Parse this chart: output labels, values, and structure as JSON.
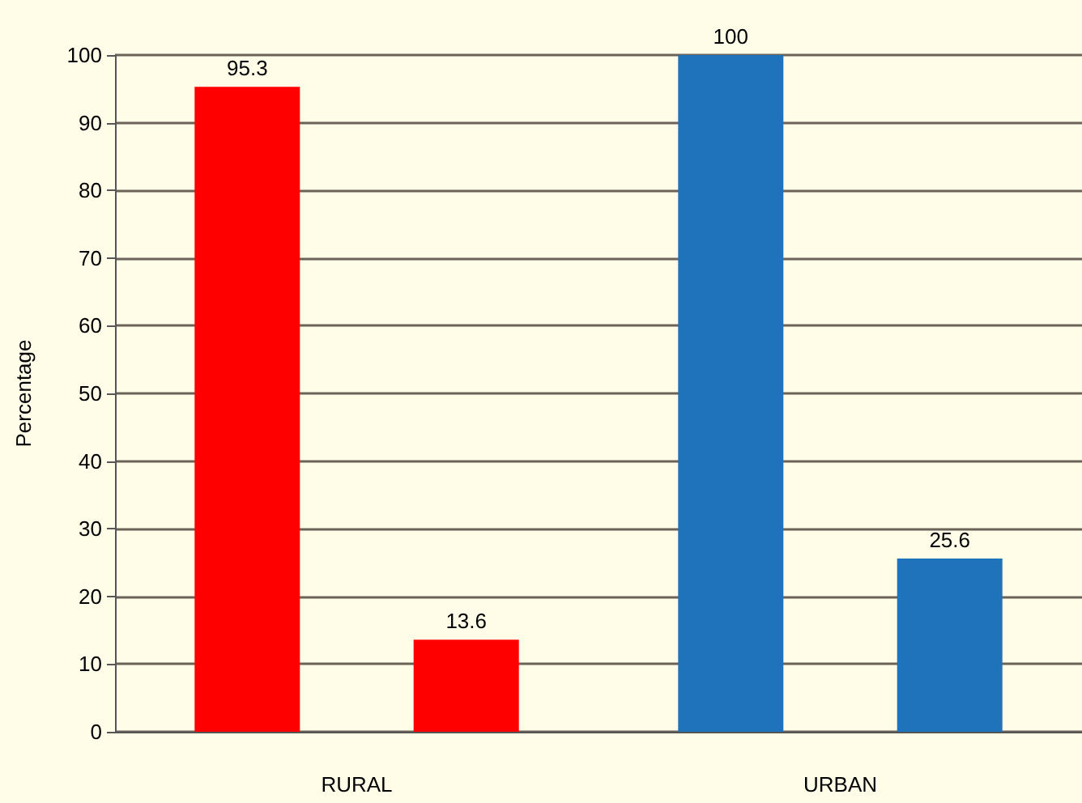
{
  "chart_data": {
    "type": "bar",
    "ylabel": "Percentage",
    "categories": [
      "RURAL",
      "URBAN"
    ],
    "series": [
      {
        "values": [
          95.3,
          100
        ],
        "colors": [
          "#ff0000",
          "#1f73bb"
        ]
      },
      {
        "values": [
          13.6,
          25.6
        ],
        "colors": [
          "#ff0000",
          "#1f73bb"
        ]
      }
    ],
    "ylim": [
      0,
      100
    ],
    "yticks": [
      0,
      10,
      20,
      30,
      40,
      50,
      60,
      70,
      80,
      90,
      100
    ],
    "grid": "y",
    "data_labels": true
  }
}
